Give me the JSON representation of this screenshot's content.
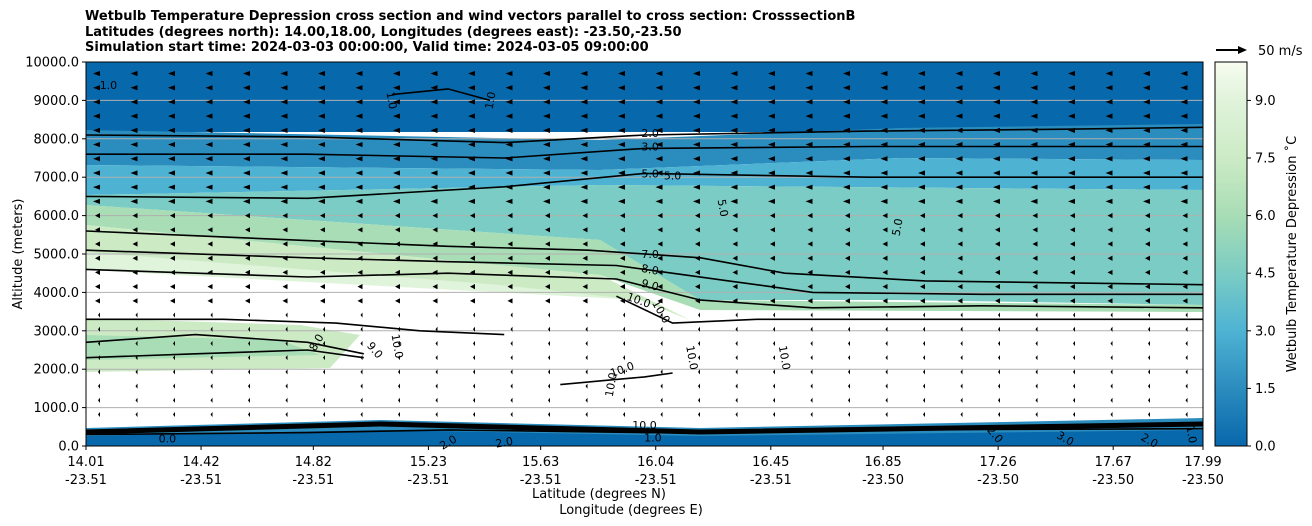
{
  "chart_data": {
    "type": "heatmap",
    "title_lines": [
      "Wetbulb Temperature Depression cross section and wind vectors parallel to cross section: CrosssectionB",
      "Latitudes (degrees north): 14.00,18.00, Longitudes (degrees east): -23.50,-23.50",
      "Simulation start time: 2024-03-03 00:00:00, Valid time: 2024-03-05 09:00:00"
    ],
    "ylabel": "Altitude (meters)",
    "xlabel_line1": "Latitude (degrees N)",
    "xlabel_line2": "Longitude (degrees E)",
    "y_ticks": [
      "0.0",
      "1000.0",
      "2000.0",
      "3000.0",
      "4000.0",
      "5000.0",
      "6000.0",
      "7000.0",
      "8000.0",
      "9000.0",
      "10000.0"
    ],
    "ylim": [
      0,
      10000
    ],
    "x_ticks": [
      {
        "lat": "14.01",
        "lon": "-23.51"
      },
      {
        "lat": "14.42",
        "lon": "-23.51"
      },
      {
        "lat": "14.82",
        "lon": "-23.51"
      },
      {
        "lat": "15.23",
        "lon": "-23.51"
      },
      {
        "lat": "15.63",
        "lon": "-23.51"
      },
      {
        "lat": "16.04",
        "lon": "-23.51"
      },
      {
        "lat": "16.45",
        "lon": "-23.51"
      },
      {
        "lat": "16.85",
        "lon": "-23.50"
      },
      {
        "lat": "17.26",
        "lon": "-23.50"
      },
      {
        "lat": "17.67",
        "lon": "-23.50"
      },
      {
        "lat": "17.99",
        "lon": "-23.50"
      }
    ],
    "xlim": [
      14.01,
      17.99
    ],
    "colorbar": {
      "label": "Wetbulb Temperature Depression ˚C",
      "range": [
        0,
        10
      ],
      "ticks": [
        "0.0",
        "1.5",
        "3.0",
        "4.5",
        "6.0",
        "7.5",
        "9.0"
      ],
      "colormap": "GnBu_r"
    },
    "quiver_key": "50 m/s",
    "contour_levels": [
      "1.0",
      "2.0",
      "3.0",
      "5.0",
      "7.0",
      "8.0",
      "9.0",
      "10.0"
    ],
    "contour_lines": [
      {
        "level": 2.0,
        "label": "2.0",
        "points": [
          [
            14.01,
            8100
          ],
          [
            14.8,
            8050
          ],
          [
            15.5,
            7900
          ],
          [
            16.0,
            8100
          ],
          [
            16.8,
            8200
          ],
          [
            17.5,
            8250
          ],
          [
            17.99,
            8300
          ]
        ]
      },
      {
        "level": 3.0,
        "label": "3.0",
        "points": [
          [
            14.01,
            7600
          ],
          [
            14.8,
            7600
          ],
          [
            15.5,
            7500
          ],
          [
            16.0,
            7750
          ],
          [
            16.8,
            7800
          ],
          [
            17.5,
            7800
          ],
          [
            17.99,
            7800
          ]
        ]
      },
      {
        "level": 5.0,
        "label": "5.0",
        "points": [
          [
            14.01,
            6500
          ],
          [
            14.8,
            6450
          ],
          [
            15.5,
            6750
          ],
          [
            16.0,
            7100
          ],
          [
            16.8,
            7000
          ],
          [
            17.5,
            7000
          ],
          [
            17.99,
            7000
          ]
        ]
      },
      {
        "level": 7.0,
        "label": "7.0",
        "points": [
          [
            14.01,
            5600
          ],
          [
            14.8,
            5350
          ],
          [
            15.3,
            5200
          ],
          [
            15.8,
            5100
          ],
          [
            16.2,
            4900
          ],
          [
            16.5,
            4500
          ],
          [
            17.0,
            4300
          ],
          [
            17.99,
            4200
          ]
        ]
      },
      {
        "level": 8.0,
        "label": "8.0",
        "points": [
          [
            14.01,
            5100
          ],
          [
            14.8,
            4900
          ],
          [
            15.3,
            4800
          ],
          [
            15.9,
            4700
          ],
          [
            16.3,
            4300
          ],
          [
            16.6,
            4000
          ],
          [
            17.2,
            3950
          ],
          [
            17.99,
            3950
          ]
        ]
      },
      {
        "level": 9.0,
        "label": "9.0",
        "points": [
          [
            14.01,
            4600
          ],
          [
            14.8,
            4400
          ],
          [
            15.3,
            4500
          ],
          [
            15.9,
            4350
          ],
          [
            16.2,
            3800
          ],
          [
            16.6,
            3600
          ],
          [
            17.2,
            3650
          ],
          [
            17.99,
            3600
          ]
        ]
      },
      {
        "level": 10.0,
        "label": "10.0",
        "points": [
          [
            14.01,
            3300
          ],
          [
            14.5,
            3300
          ],
          [
            14.9,
            3200
          ],
          [
            15.2,
            3000
          ],
          [
            15.5,
            2900
          ]
        ]
      },
      {
        "level": 10.0,
        "label": "10.0",
        "points": [
          [
            15.9,
            3900
          ],
          [
            16.1,
            3200
          ],
          [
            16.4,
            3300
          ],
          [
            17.0,
            3300
          ],
          [
            17.99,
            3300
          ]
        ]
      },
      {
        "level": 9.0,
        "label": "9.0",
        "points": [
          [
            14.01,
            2700
          ],
          [
            14.4,
            2900
          ],
          [
            14.8,
            2700
          ],
          [
            15.0,
            2400
          ]
        ]
      },
      {
        "level": 8.0,
        "label": "8.0",
        "points": [
          [
            14.01,
            2300
          ],
          [
            14.4,
            2400
          ],
          [
            14.8,
            2500
          ],
          [
            15.0,
            2300
          ]
        ]
      },
      {
        "level": 10.0,
        "label": "10.0",
        "points": [
          [
            15.7,
            1600
          ],
          [
            15.85,
            1700
          ],
          [
            16.0,
            1800
          ],
          [
            16.1,
            1900
          ]
        ]
      },
      {
        "level": 1.0,
        "label": "1.0",
        "points": [
          [
            14.01,
            300
          ],
          [
            14.8,
            350
          ],
          [
            15.3,
            420
          ],
          [
            16.0,
            350
          ],
          [
            16.8,
            420
          ],
          [
            17.99,
            450
          ]
        ]
      },
      {
        "level": 1.0,
        "label": "1.0",
        "points": [
          [
            15.1,
            9150
          ],
          [
            15.3,
            9300
          ],
          [
            15.45,
            9000
          ]
        ]
      }
    ],
    "contour_labels": [
      {
        "text": "1.0",
        "lat": 14.09,
        "alt": 9400,
        "rot": 0
      },
      {
        "text": "1.0",
        "lat": 15.1,
        "alt": 9000,
        "rot": 80
      },
      {
        "text": "1.0",
        "lat": 15.45,
        "alt": 9000,
        "rot": -80
      },
      {
        "text": "2.0",
        "lat": 16.02,
        "alt": 8150,
        "rot": 0
      },
      {
        "text": "3.0",
        "lat": 16.02,
        "alt": 7800,
        "rot": 0
      },
      {
        "text": "5.0",
        "lat": 16.02,
        "alt": 7100,
        "rot": 0
      },
      {
        "text": "5.0",
        "lat": 16.1,
        "alt": 7050,
        "rot": 0
      },
      {
        "text": "5.0",
        "lat": 16.28,
        "alt": 6200,
        "rot": 80
      },
      {
        "text": "5.0",
        "lat": 16.9,
        "alt": 5700,
        "rot": -80
      },
      {
        "text": "7.0",
        "lat": 16.02,
        "alt": 5000,
        "rot": 0
      },
      {
        "text": "8.0",
        "lat": 16.02,
        "alt": 4600,
        "rot": 10
      },
      {
        "text": "9.0",
        "lat": 16.02,
        "alt": 4200,
        "rot": 15
      },
      {
        "text": "10.0",
        "lat": 15.98,
        "alt": 3800,
        "rot": 20
      },
      {
        "text": "10.0",
        "lat": 16.06,
        "alt": 3500,
        "rot": 60
      },
      {
        "text": "8.0",
        "lat": 14.83,
        "alt": 2700,
        "rot": -60
      },
      {
        "text": "9.0",
        "lat": 15.04,
        "alt": 2500,
        "rot": 50
      },
      {
        "text": "10.0",
        "lat": 15.12,
        "alt": 2600,
        "rot": 80
      },
      {
        "text": "10.0",
        "lat": 16.17,
        "alt": 2300,
        "rot": 80
      },
      {
        "text": "10.0",
        "lat": 16.5,
        "alt": 2300,
        "rot": 80
      },
      {
        "text": "10.0",
        "lat": 15.92,
        "alt": 2000,
        "rot": -20
      },
      {
        "text": "10.0",
        "lat": 15.88,
        "alt": 1600,
        "rot": -80
      },
      {
        "text": "10.0",
        "lat": 16.0,
        "alt": 550,
        "rot": 0
      },
      {
        "text": "1.0",
        "lat": 16.03,
        "alt": 220,
        "rot": 0
      },
      {
        "text": "2.0",
        "lat": 15.3,
        "alt": 100,
        "rot": -30
      },
      {
        "text": "2.0",
        "lat": 15.5,
        "alt": 100,
        "rot": -10
      },
      {
        "text": "0.0",
        "lat": 14.3,
        "alt": 200,
        "rot": 0
      },
      {
        "text": "2.0",
        "lat": 17.25,
        "alt": 300,
        "rot": 50
      },
      {
        "text": "3.0",
        "lat": 17.5,
        "alt": 200,
        "rot": 30
      },
      {
        "text": "2.0",
        "lat": 17.8,
        "alt": 150,
        "rot": 30
      },
      {
        "text": "1.0",
        "lat": 17.95,
        "alt": 300,
        "rot": 80
      }
    ],
    "wind_arrows_note": "westward wind vectors (pointing left), strongest above 6000 m"
  }
}
